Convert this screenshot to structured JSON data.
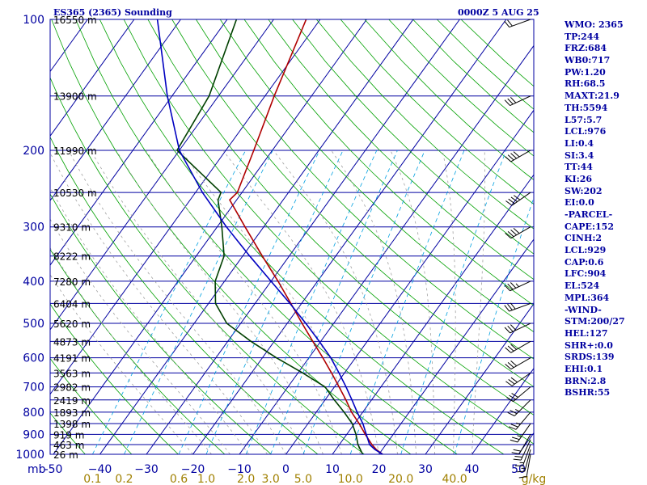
{
  "header": {
    "title_left": "ES365 (2365) Sounding",
    "title_right": "0000Z  5 AUG 25"
  },
  "stats": [
    "WMO: 2365",
    "TP:244",
    "FRZ:684",
    "WB0:717",
    "PW:1.20",
    "RH:68.5",
    "MAXT:21.9",
    "TH:5594",
    "L57:5.7",
    "LCL:976",
    "LI:0.4",
    "SI:3.4",
    "TT:44",
    "KI:26",
    "SW:202",
    "EI:0.0",
    "-PARCEL-",
    "CAPE:152",
    "CINH:2",
    "LCL:929",
    "CAP:0.6",
    "LFC:904",
    "EL:524",
    "MPL:364",
    "-WIND-",
    "STM:200/27",
    "HEL:127",
    "SHR+:0.0",
    "SRDS:139",
    "EHI:0.1",
    "BRN:2.8",
    "BSHR:55"
  ],
  "colors": {
    "isobar": "#0000a0",
    "isotherm": "#0000a0",
    "dry_adiabat": "#00a000",
    "moist_adiabat": "#a0a0a0",
    "mixing_ratio": "#00a0e0",
    "temperature": "#b00000",
    "dewpoint": "#004000",
    "parcel": "#0000c0",
    "wind": "#000000",
    "mixing_label": "#a08000"
  },
  "chart_data": {
    "type": "line",
    "diagram": "skew-t log-p",
    "xlim": [
      -50,
      50
    ],
    "ylim": [
      1000,
      100
    ],
    "pressure_ticks": [
      100,
      200,
      300,
      400,
      500,
      600,
      700,
      800,
      900,
      1000
    ],
    "pressure_tick_labels": [
      "100",
      "200",
      "300",
      "400",
      "500",
      "600",
      "700",
      "800",
      "900",
      "1000"
    ],
    "pressure_unit": "mb",
    "temperature_ticks": [
      -50,
      -40,
      -30,
      -20,
      -10,
      0,
      10,
      20,
      30,
      40,
      50
    ],
    "temperature_tick_labels": [
      "-50",
      "−40",
      "−30",
      "−20",
      "−10",
      "0",
      "10",
      "20",
      "30",
      "40",
      "50"
    ],
    "mixing_ratio_ticks": [
      0.1,
      0.2,
      0.6,
      1.0,
      2.0,
      3.0,
      5.0,
      10.0,
      20.0,
      40.0
    ],
    "mixing_ratio_tick_labels": [
      "0.1",
      "0.2",
      "0.6",
      "1.0",
      "2.0",
      "3.0",
      "5.0",
      "10.0",
      "20.0",
      "40.0"
    ],
    "mixing_ratio_unit": "g/kg",
    "height_levels": [
      {
        "p": 1000,
        "label": "26 m"
      },
      {
        "p": 950,
        "label": "463 m"
      },
      {
        "p": 900,
        "label": "919 m"
      },
      {
        "p": 850,
        "label": "1398 m"
      },
      {
        "p": 800,
        "label": "1893 m"
      },
      {
        "p": 750,
        "label": "2419 m"
      },
      {
        "p": 700,
        "label": "2982 m"
      },
      {
        "p": 650,
        "label": "3563 m"
      },
      {
        "p": 600,
        "label": "4191 m"
      },
      {
        "p": 550,
        "label": "4873 m"
      },
      {
        "p": 500,
        "label": "5620 m"
      },
      {
        "p": 450,
        "label": "6404 m"
      },
      {
        "p": 400,
        "label": "7280 m"
      },
      {
        "p": 350,
        "label": "8222 m"
      },
      {
        "p": 300,
        "label": "9310 m"
      },
      {
        "p": 250,
        "label": "10530 m"
      },
      {
        "p": 200,
        "label": "11990 m"
      },
      {
        "p": 150,
        "label": "13900 m"
      },
      {
        "p": 100,
        "label": "16550 m"
      }
    ],
    "series": [
      {
        "key": "temperature",
        "points": [
          [
            1000,
            20.8
          ],
          [
            975,
            18.7
          ],
          [
            950,
            17.0
          ],
          [
            900,
            14.0
          ],
          [
            850,
            11.0
          ],
          [
            800,
            7.6
          ],
          [
            750,
            4.5
          ],
          [
            700,
            1.0
          ],
          [
            650,
            -2.8
          ],
          [
            600,
            -7.0
          ],
          [
            550,
            -11.7
          ],
          [
            500,
            -16.8
          ],
          [
            450,
            -22.3
          ],
          [
            400,
            -28.5
          ],
          [
            350,
            -35.8
          ],
          [
            300,
            -44.0
          ],
          [
            260,
            -51.5
          ],
          [
            250,
            -51.0
          ],
          [
            200,
            -54.0
          ],
          [
            150,
            -58.0
          ],
          [
            100,
            -63.0
          ]
        ]
      },
      {
        "key": "dewpoint",
        "points": [
          [
            1000,
            16.5
          ],
          [
            950,
            14.0
          ],
          [
            900,
            12.0
          ],
          [
            850,
            9.5
          ],
          [
            800,
            6.0
          ],
          [
            750,
            2.0
          ],
          [
            700,
            -2.0
          ],
          [
            650,
            -9.0
          ],
          [
            600,
            -17.0
          ],
          [
            550,
            -25.0
          ],
          [
            500,
            -33.0
          ],
          [
            450,
            -38.5
          ],
          [
            400,
            -42.0
          ],
          [
            350,
            -44.0
          ],
          [
            300,
            -49.0
          ],
          [
            260,
            -54.0
          ],
          [
            250,
            -54.5
          ],
          [
            200,
            -70.5
          ],
          [
            150,
            -72.0
          ],
          [
            100,
            -78.0
          ]
        ]
      },
      {
        "key": "parcel",
        "points": [
          [
            1000,
            20.8
          ],
          [
            975,
            18.4
          ],
          [
            950,
            16.5
          ],
          [
            900,
            14.2
          ],
          [
            850,
            11.8
          ],
          [
            800,
            8.8
          ],
          [
            750,
            5.8
          ],
          [
            700,
            2.5
          ],
          [
            650,
            -1.2
          ],
          [
            600,
            -5.3
          ],
          [
            550,
            -10.3
          ],
          [
            500,
            -16.0
          ],
          [
            450,
            -22.5
          ],
          [
            400,
            -30.0
          ],
          [
            350,
            -38.5
          ],
          [
            300,
            -48.0
          ],
          [
            250,
            -58.5
          ],
          [
            200,
            -70.0
          ],
          [
            150,
            -81.0
          ],
          [
            100,
            -95.0
          ]
        ]
      }
    ],
    "wind_barbs": [
      {
        "p": 1000,
        "dir": 190,
        "spd": 10
      },
      {
        "p": 975,
        "dir": 195,
        "spd": 15
      },
      {
        "p": 950,
        "dir": 200,
        "spd": 15
      },
      {
        "p": 925,
        "dir": 205,
        "spd": 20
      },
      {
        "p": 900,
        "dir": 210,
        "spd": 20
      },
      {
        "p": 850,
        "dir": 215,
        "spd": 25
      },
      {
        "p": 800,
        "dir": 220,
        "spd": 25
      },
      {
        "p": 750,
        "dir": 225,
        "spd": 25
      },
      {
        "p": 700,
        "dir": 230,
        "spd": 30
      },
      {
        "p": 650,
        "dir": 235,
        "spd": 30
      },
      {
        "p": 600,
        "dir": 240,
        "spd": 30
      },
      {
        "p": 550,
        "dir": 240,
        "spd": 30
      },
      {
        "p": 500,
        "dir": 245,
        "spd": 30
      },
      {
        "p": 450,
        "dir": 250,
        "spd": 30
      },
      {
        "p": 400,
        "dir": 245,
        "spd": 35
      },
      {
        "p": 300,
        "dir": 240,
        "spd": 40
      },
      {
        "p": 250,
        "dir": 235,
        "spd": 40
      },
      {
        "p": 200,
        "dir": 240,
        "spd": 40
      },
      {
        "p": 150,
        "dir": 245,
        "spd": 30
      },
      {
        "p": 100,
        "dir": 250,
        "spd": 20
      }
    ]
  }
}
